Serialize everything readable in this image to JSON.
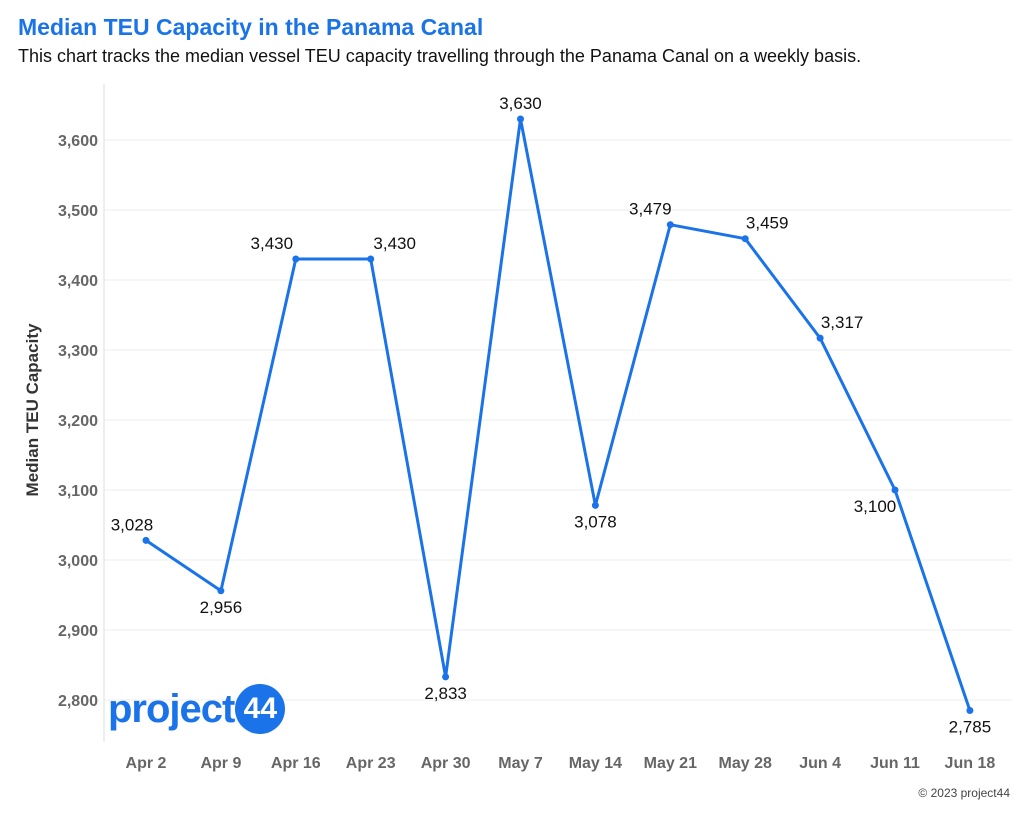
{
  "header": {
    "title": "Median TEU Capacity in the Panama Canal",
    "subtitle": "This chart tracks the median vessel TEU capacity travelling through the Panama Canal on a weekly basis."
  },
  "footer": {
    "copyright": "© 2023 project44"
  },
  "logo": {
    "text": "project",
    "number": "44"
  },
  "colors": {
    "accent": "#1a73e8",
    "line": "#1a73e8",
    "grid": "#eeeeee"
  },
  "chart_data": {
    "type": "line",
    "title": "Median TEU Capacity in the Panama Canal",
    "subtitle": "This chart tracks the median vessel TEU capacity travelling through the Panama Canal on a weekly basis.",
    "xlabel": "",
    "ylabel": "Median TEU Capacity",
    "categories": [
      "Apr 2",
      "Apr 9",
      "Apr 16",
      "Apr 23",
      "Apr 30",
      "May 7",
      "May 14",
      "May 21",
      "May 28",
      "Jun 4",
      "Jun 11",
      "Jun 18"
    ],
    "series": [
      {
        "values": [
          3028,
          2956,
          3430,
          3430,
          2833,
          3630,
          3078,
          3479,
          3459,
          3317,
          3100,
          2785
        ]
      }
    ],
    "data_labels": [
      "3,028",
      "2,956",
      "3,430",
      "3,430",
      "2,833",
      "3,630",
      "3,078",
      "3,479",
      "3,459",
      "3,317",
      "3,100",
      "2,785"
    ],
    "y_ticks": [
      2800,
      2900,
      3000,
      3100,
      3200,
      3300,
      3400,
      3500,
      3600
    ],
    "y_tick_labels": [
      "2,800",
      "2,900",
      "3,000",
      "3,100",
      "3,200",
      "3,300",
      "3,400",
      "3,500",
      "3,600"
    ],
    "ylim": [
      2740,
      3680
    ],
    "grid": true,
    "legend": "none"
  }
}
